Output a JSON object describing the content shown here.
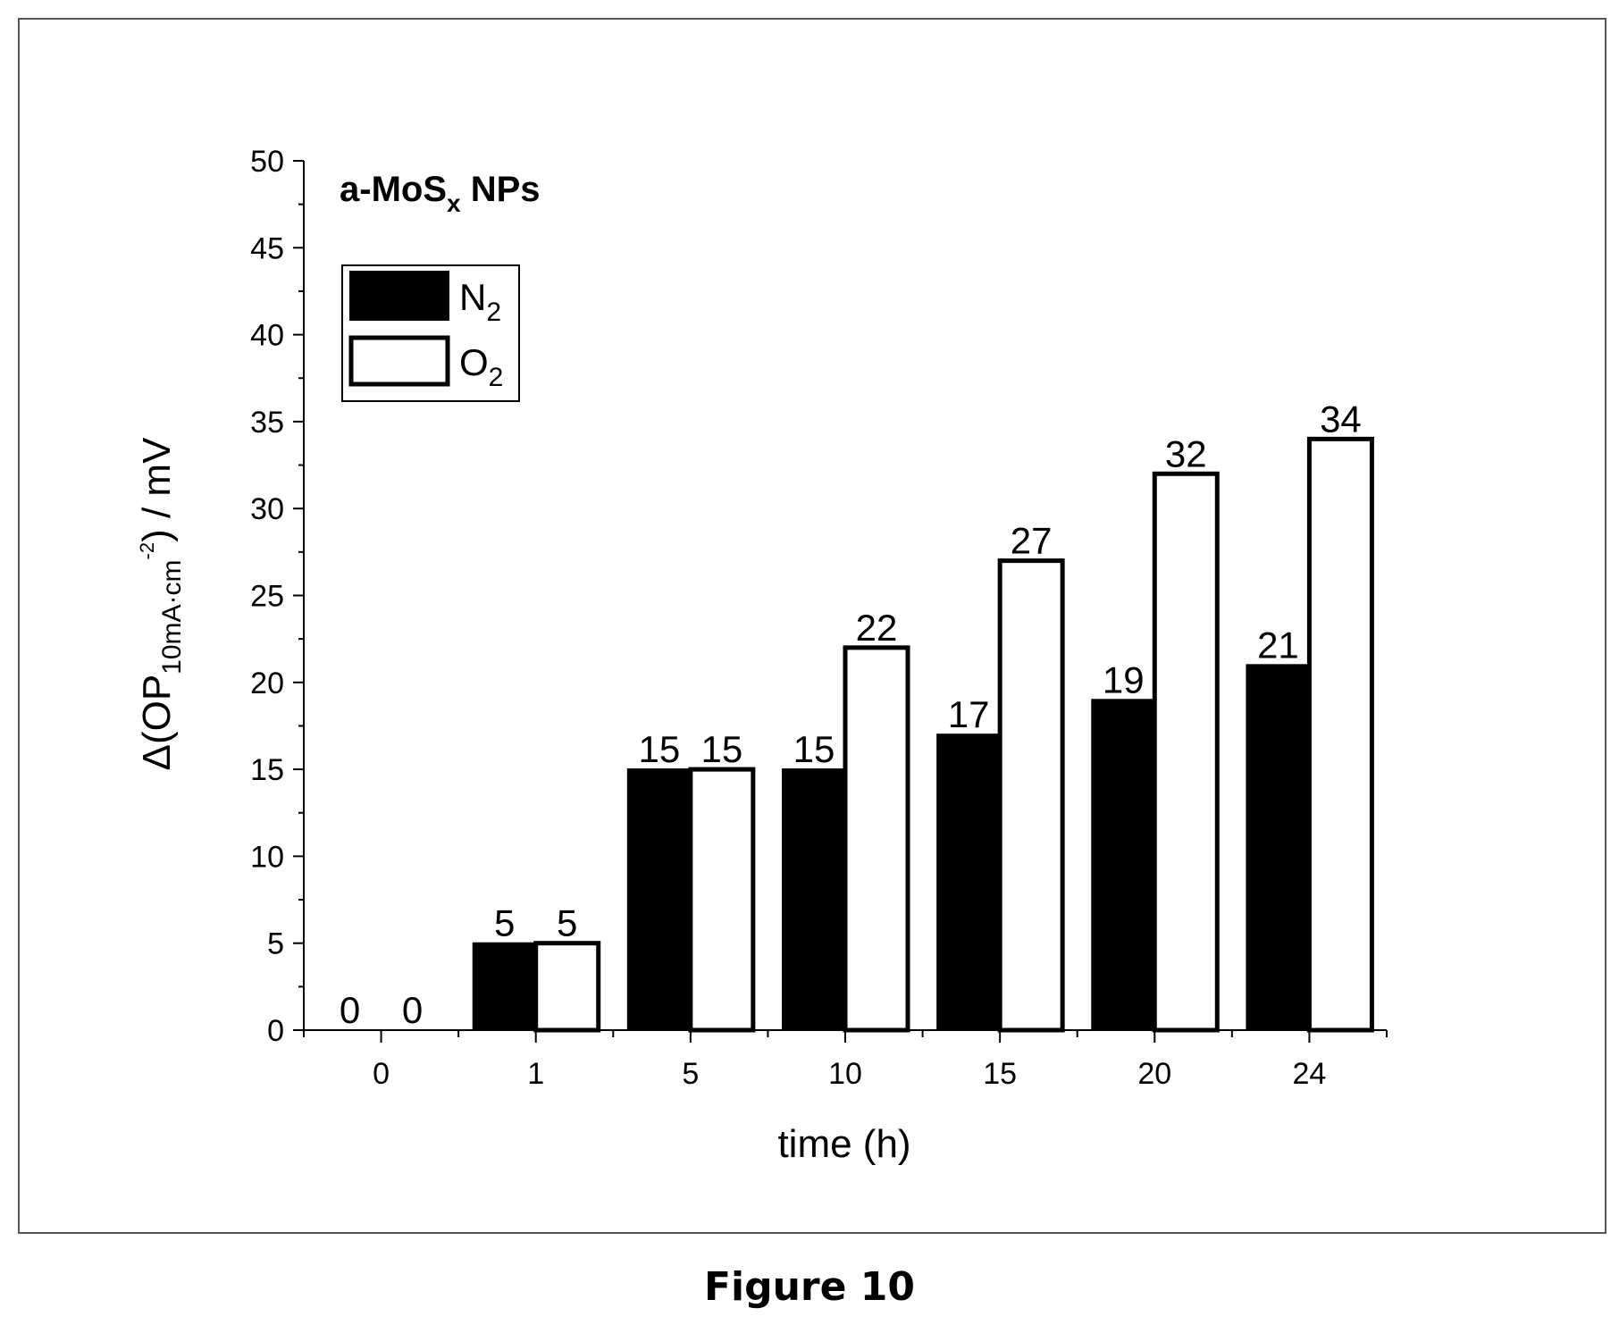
{
  "figure": {
    "caption": "Figure 10"
  },
  "chart_data": {
    "type": "bar",
    "title": "a-MoS",
    "title_subscript": "x",
    "title_suffix": " NPs",
    "xlabel": "time (h)",
    "ylabel": {
      "prefix": "Δ(OP",
      "subscript": "10mA·cm",
      "superscript": "-2",
      "suffix": ") / mV"
    },
    "categories": [
      "0",
      "1",
      "5",
      "10",
      "15",
      "20",
      "24"
    ],
    "series": [
      {
        "name": "N",
        "name_subscript": "2",
        "fill": "#000000",
        "values": [
          0,
          5,
          15,
          15,
          17,
          19,
          21
        ]
      },
      {
        "name": "O",
        "name_subscript": "2",
        "fill": "#ffffff",
        "values": [
          0,
          5,
          15,
          22,
          27,
          32,
          34
        ]
      }
    ],
    "ylim": [
      0,
      50
    ],
    "yticks": [
      0,
      5,
      10,
      15,
      20,
      25,
      30,
      35,
      40,
      45,
      50
    ],
    "data_labels": true,
    "legend_position": "top-left",
    "grid": false
  }
}
